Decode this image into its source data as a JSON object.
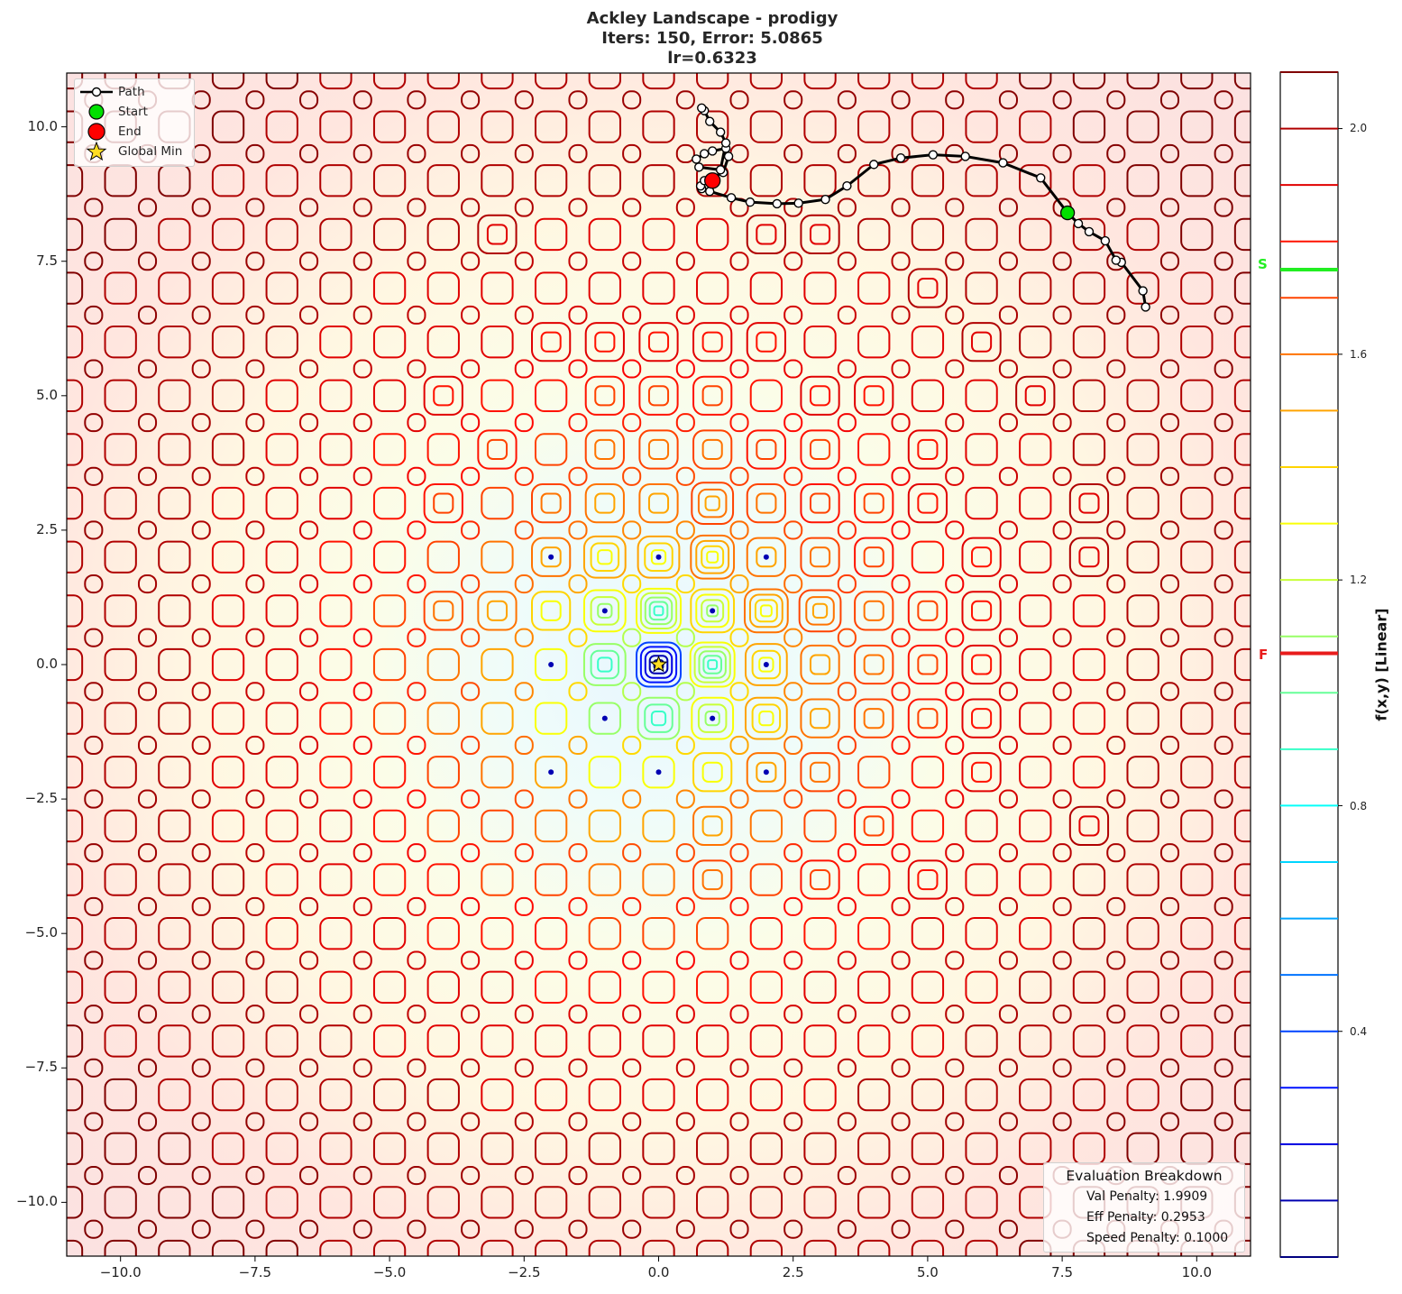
{
  "chart_data": {
    "type": "contour",
    "title": "Ackley Landscape - prodigy",
    "subtitle_lines": [
      "Iters: 150, Error: 5.0865",
      "lr=0.6323"
    ],
    "function": "Ackley",
    "optimizer": "prodigy",
    "iterations": 150,
    "error": 5.0865,
    "lr": 0.6323,
    "xlabel": "",
    "ylabel": "",
    "xlim": [
      -11,
      11
    ],
    "ylim": [
      -11,
      11
    ],
    "x_ticks": [
      -10.0,
      -7.5,
      -5.0,
      -2.5,
      0.0,
      2.5,
      5.0,
      7.5,
      10.0
    ],
    "y_ticks": [
      -10.0,
      -7.5,
      -5.0,
      -2.5,
      0.0,
      2.5,
      5.0,
      7.5,
      10.0
    ],
    "grid": false,
    "colorbar": {
      "label": "f(x,y) [Linear]",
      "ticks": [
        0.4,
        0.8,
        1.2,
        1.6,
        2.0
      ],
      "range": [
        0.0,
        2.1
      ],
      "colormap": "jet",
      "level_count": 21,
      "markers": [
        {
          "label": "S",
          "value": 1.75,
          "color": "#22ee22"
        },
        {
          "label": "F",
          "value": 1.07,
          "color": "#e81c1c"
        }
      ]
    },
    "legend": {
      "position": "upper left",
      "entries": [
        "Path",
        "Start",
        "End",
        "Global Min"
      ]
    },
    "points": {
      "start": {
        "x": 7.6,
        "y": 8.4,
        "color": "#00e000"
      },
      "end": {
        "x": 1.0,
        "y": 9.0,
        "color": "#ff0000"
      },
      "global_min": {
        "x": 0.0,
        "y": 0.0,
        "color": "#ffdd22"
      }
    },
    "path": [
      [
        9.05,
        6.65
      ],
      [
        9.0,
        6.95
      ],
      [
        8.6,
        7.48
      ],
      [
        8.5,
        7.52
      ],
      [
        8.3,
        7.88
      ],
      [
        8.0,
        8.05
      ],
      [
        7.8,
        8.2
      ],
      [
        7.6,
        8.4
      ],
      [
        7.1,
        9.05
      ],
      [
        6.4,
        9.33
      ],
      [
        5.7,
        9.45
      ],
      [
        5.1,
        9.48
      ],
      [
        4.5,
        9.42
      ],
      [
        4.0,
        9.3
      ],
      [
        3.5,
        8.9
      ],
      [
        3.1,
        8.65
      ],
      [
        2.6,
        8.58
      ],
      [
        2.2,
        8.57
      ],
      [
        1.7,
        8.6
      ],
      [
        1.35,
        8.68
      ],
      [
        0.95,
        8.8
      ],
      [
        0.8,
        8.85
      ],
      [
        0.78,
        8.9
      ],
      [
        0.85,
        9.0
      ],
      [
        1.2,
        9.15
      ],
      [
        1.3,
        9.45
      ],
      [
        1.25,
        9.6
      ],
      [
        1.0,
        9.55
      ],
      [
        0.85,
        9.5
      ],
      [
        0.7,
        9.4
      ],
      [
        0.75,
        9.25
      ],
      [
        1.15,
        9.2
      ],
      [
        1.25,
        9.7
      ],
      [
        1.15,
        9.9
      ],
      [
        0.95,
        10.1
      ],
      [
        0.85,
        10.3
      ],
      [
        0.8,
        10.35
      ]
    ],
    "evaluation_breakdown": {
      "title": "Evaluation Breakdown",
      "val_penalty": 1.9909,
      "eff_penalty": 0.2953,
      "speed_penalty": 0.1
    }
  },
  "title": {
    "line1": "Ackley Landscape - prodigy",
    "line2": "Iters: 150, Error: 5.0865",
    "line3": "lr=0.6323"
  },
  "legend": {
    "path": "Path",
    "start": "Start",
    "end": "End",
    "global_min": "Global Min"
  },
  "breakdown": {
    "title": "Evaluation Breakdown",
    "val": "Val Penalty: 1.9909",
    "eff": "Eff Penalty: 0.2953",
    "speed": "Speed Penalty: 0.1000"
  },
  "axes": {
    "x_tick_labels": [
      "−10.0",
      "−7.5",
      "−5.0",
      "−2.5",
      "0.0",
      "2.5",
      "5.0",
      "7.5",
      "10.0"
    ],
    "y_tick_labels": [
      "10.0",
      "7.5",
      "5.0",
      "2.5",
      "0.0",
      "−2.5",
      "−5.0",
      "−7.5",
      "−10.0"
    ]
  },
  "colorbar": {
    "label": "f(x,y) [Linear]",
    "tick_labels": [
      "2.0",
      "1.6",
      "1.2",
      "0.8",
      "0.4"
    ],
    "marker_s": "S",
    "marker_f": "F"
  }
}
